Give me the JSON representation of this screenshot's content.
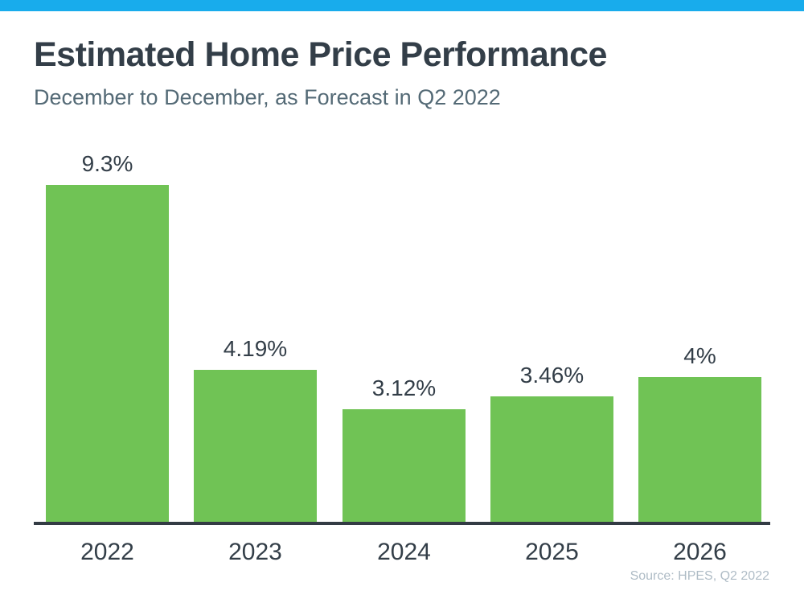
{
  "page": {
    "accent_bar_color": "#18ACEC",
    "background_color": "#FFFFFF"
  },
  "header": {
    "title": "Estimated Home Price Performance",
    "subtitle": "December to December, as Forecast in Q2 2022"
  },
  "chart_data": {
    "type": "bar",
    "title": "Estimated Home Price Performance",
    "subtitle": "December to December, as Forecast in Q2 2022",
    "categories": [
      "2022",
      "2023",
      "2024",
      "2025",
      "2026"
    ],
    "values": [
      9.3,
      4.19,
      3.12,
      3.46,
      4
    ],
    "value_labels": [
      "9.3%",
      "4.19%",
      "3.12%",
      "3.46%",
      "4%"
    ],
    "xlabel": "",
    "ylabel": "",
    "ylim": [
      0,
      9.3
    ],
    "grid": false,
    "legend": false,
    "bar_color": "#70C355",
    "axis_color": "#333B44",
    "label_color": "#333E48"
  },
  "footer": {
    "source": "Source: HPES, Q2 2022"
  }
}
